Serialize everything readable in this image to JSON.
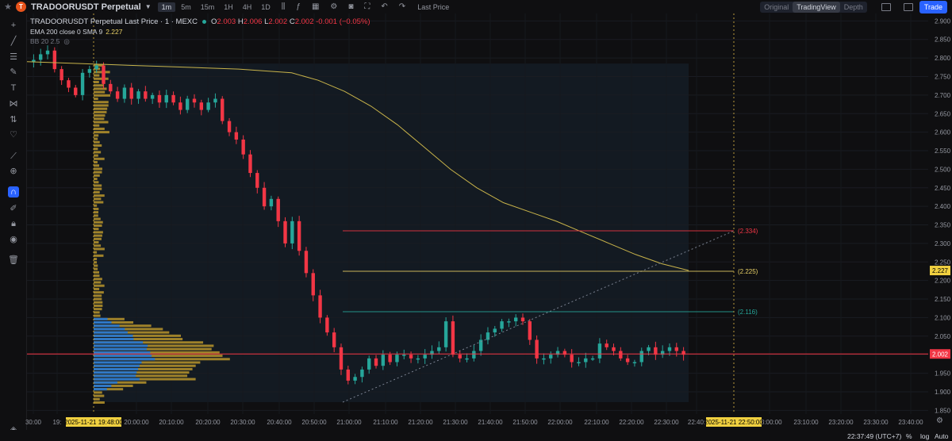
{
  "topbar": {
    "symbol": "TRADOORUSDT Perpetual",
    "logo_text": "T",
    "timeframes": [
      "1m",
      "5m",
      "15m",
      "1H",
      "4H",
      "1D"
    ],
    "active_timeframe": "1m",
    "last_price_label": "Last Price",
    "views": [
      "Original",
      "TradingView",
      "Depth"
    ],
    "active_view": "TradingView",
    "trade_label": "Trade"
  },
  "legend": {
    "title": "TRADOORUSDT Perpetual Last Price · 1 · MEXC",
    "open": "2.003",
    "high": "2.006",
    "low": "2.002",
    "close": "2.002",
    "change": "-0.001 (−0.05%)",
    "o_label": "O",
    "h_label": "H",
    "l_label": "L",
    "c_label": "C",
    "ema_label": "EMA 200 close 0 SMA 9",
    "ema_value": "2.227",
    "bb_label": "BB 20 2.5"
  },
  "chart_data": {
    "type": "candlestick",
    "price_scale": {
      "min": 1.84,
      "max": 2.92,
      "ticks": [
        "2.900",
        "2.850",
        "2.800",
        "2.750",
        "2.700",
        "2.650",
        "2.600",
        "2.550",
        "2.500",
        "2.450",
        "2.400",
        "2.350",
        "2.300",
        "2.250",
        "2.200",
        "2.150",
        "2.100",
        "2.050",
        "2.000",
        "1.950",
        "1.900",
        "1.850"
      ]
    },
    "time_axis_labels": [
      "30:00",
      "19:",
      "20:00:00",
      "20:10:00",
      "20:20:00",
      "20:30:00",
      "20:40:00",
      "20:50:00",
      "21:00:00",
      "21:10:00",
      "21:20:00",
      "21:30:00",
      "21:40:00",
      "21:50:00",
      "22:00:00",
      "22:10:00",
      "22:20:00",
      "22:30:00",
      "22:40:",
      "23:00:00",
      "23:10:00",
      "23:20:00",
      "23:30:00",
      "23:40:00"
    ],
    "time_highlights": [
      "2025-11-21   19:48:00",
      "2025-11-21   22:50:00"
    ],
    "current_price": "2.002",
    "ema_price": "2.227",
    "hlines": [
      {
        "label": "(2.334)",
        "value": 2.334,
        "color": "#f23645"
      },
      {
        "label": "(2.225)",
        "value": 2.225,
        "color": "#e8d066"
      },
      {
        "label": "(2.116)",
        "value": 2.116,
        "color": "#26a69a"
      }
    ],
    "ema_path": [
      [
        0,
        2.79
      ],
      [
        20,
        2.785
      ],
      [
        40,
        2.78
      ],
      [
        60,
        2.775
      ],
      [
        80,
        2.77
      ],
      [
        100,
        2.76
      ],
      [
        110,
        2.74
      ],
      [
        120,
        2.71
      ],
      [
        130,
        2.67
      ],
      [
        140,
        2.62
      ],
      [
        150,
        2.56
      ],
      [
        160,
        2.5
      ],
      [
        170,
        2.45
      ],
      [
        180,
        2.41
      ],
      [
        190,
        2.385
      ],
      [
        200,
        2.36
      ],
      [
        210,
        2.33
      ],
      [
        220,
        2.3
      ],
      [
        230,
        2.27
      ],
      [
        240,
        2.245
      ],
      [
        250,
        2.227
      ]
    ],
    "candle_closes": [
      2.795,
      2.81,
      2.82,
      2.77,
      2.74,
      2.72,
      2.7,
      2.76,
      2.77,
      2.78,
      2.73,
      2.71,
      2.69,
      2.72,
      2.69,
      2.71,
      2.69,
      2.7,
      2.68,
      2.7,
      2.68,
      2.66,
      2.69,
      2.68,
      2.66,
      2.68,
      2.69,
      2.63,
      2.6,
      2.58,
      2.54,
      2.49,
      2.45,
      2.4,
      2.42,
      2.36,
      2.3,
      2.36,
      2.28,
      2.22,
      2.16,
      2.1,
      2.06,
      2.02,
      1.96,
      1.93,
      1.94,
      1.96,
      1.99,
      1.97,
      2.0,
      1.98,
      2.0,
      2.0,
      1.99,
      1.99,
      2.0,
      2.01,
      2.02,
      2.09,
      2.0,
      1.99,
      1.99,
      2.01,
      2.04,
      2.06,
      2.07,
      2.09,
      2.09,
      2.1,
      2.09,
      2.04,
      1.99,
      1.99,
      2.0,
      2.01,
      2.0,
      1.98,
      1.98,
      1.99,
      1.99,
      2.03,
      2.02,
      2.01,
      1.99,
      1.98,
      1.98,
      2.01,
      2.02,
      2.0,
      2.01,
      2.02,
      2.01,
      2.0
    ]
  },
  "status": {
    "clock": "22:37:49 (UTC+7)",
    "percent": "%",
    "log": "log",
    "auto": "Auto"
  }
}
